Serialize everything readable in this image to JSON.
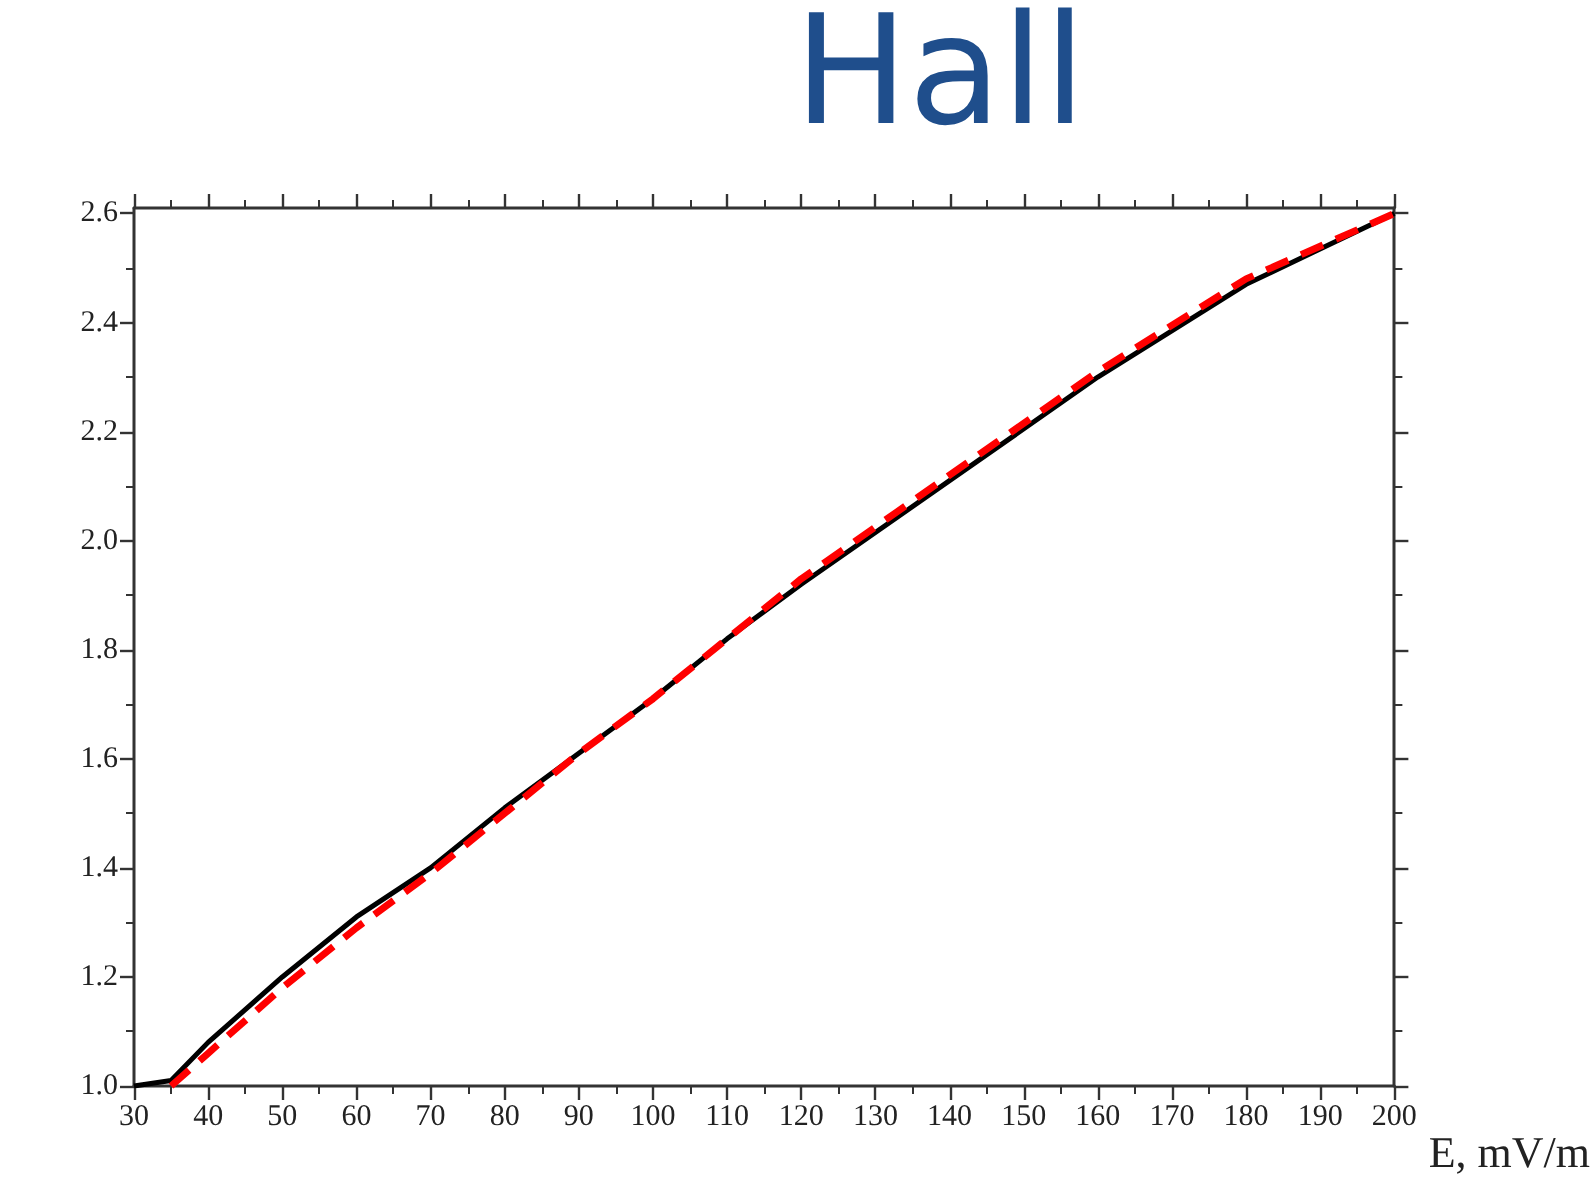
{
  "chart_data": {
    "type": "line",
    "title": "Hall",
    "xlabel": "E, mV/m",
    "xlim": [
      30,
      200
    ],
    "xticks": [
      30,
      40,
      50,
      60,
      70,
      80,
      90,
      100,
      110,
      120,
      130,
      140,
      150,
      160,
      170,
      180,
      190,
      200
    ],
    "ylim": [
      1.0,
      2.61
    ],
    "yticks": [
      {
        "value": 1,
        "label": "1.0"
      },
      1.2,
      1.4,
      1.6,
      1.8,
      {
        "value": 2,
        "label": "2.0"
      },
      2.2,
      2.4,
      2.6
    ],
    "marker": "none",
    "series": [
      {
        "color": "#000000",
        "line_style": "solid",
        "x": [
          30,
          35,
          40,
          50,
          60,
          70,
          80,
          90,
          100,
          110,
          120,
          140,
          160,
          180,
          200
        ],
        "values": [
          1.0,
          1.01,
          1.08,
          1.2,
          1.31,
          1.4,
          1.51,
          1.61,
          1.71,
          1.82,
          1.92,
          2.11,
          2.3,
          2.47,
          2.6
        ]
      },
      {
        "color": "#ff0000",
        "line_style": "dashed",
        "x": [
          35,
          40,
          50,
          60,
          70,
          80,
          90,
          100,
          110,
          120,
          140,
          160,
          180,
          200
        ],
        "values": [
          1.0,
          1.06,
          1.18,
          1.29,
          1.39,
          1.5,
          1.61,
          1.71,
          1.82,
          1.93,
          2.12,
          2.31,
          2.48,
          2.6
        ]
      }
    ]
  }
}
